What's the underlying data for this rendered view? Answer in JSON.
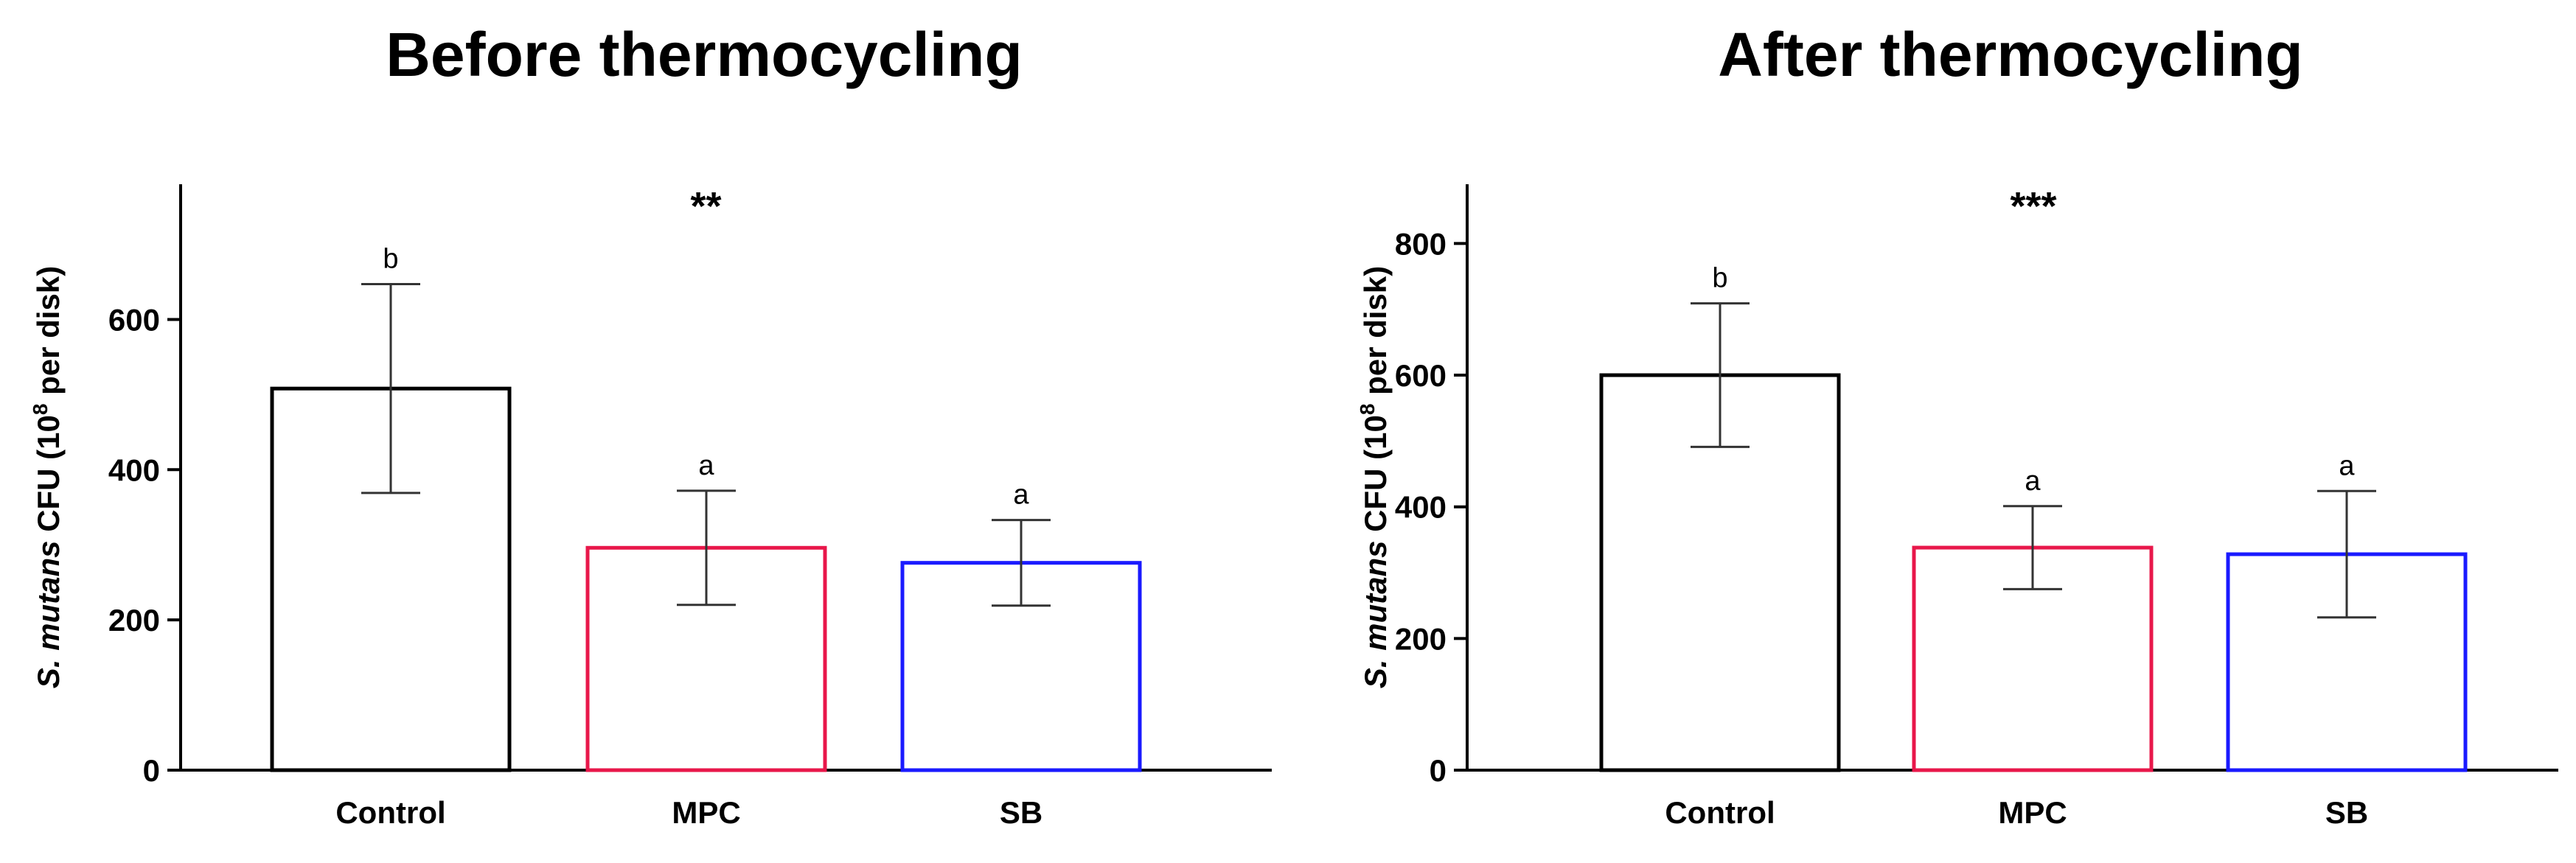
{
  "chart_data": [
    {
      "type": "bar",
      "title": "Before thermocycling",
      "ylabel_italic": "S. mutans",
      "ylabel_rest": " CFU (10",
      "ylabel_sup": "8",
      "ylabel_end": " per disk)",
      "categories": [
        "Control",
        "MPC",
        "SB"
      ],
      "values": [
        508,
        296,
        276
      ],
      "errors": [
        139,
        76,
        57
      ],
      "letters": [
        "b",
        "a",
        "a"
      ],
      "significance": "**",
      "colors": [
        "#000000",
        "#e8174a",
        "#1a1aff"
      ],
      "ylim": [
        0,
        780
      ],
      "yticks": [
        0,
        200,
        400,
        600
      ]
    },
    {
      "type": "bar",
      "title": "After thermocycling",
      "ylabel_italic": "S. mutans",
      "ylabel_rest": " CFU (10",
      "ylabel_sup": "8",
      "ylabel_end": " per disk)",
      "categories": [
        "Control",
        "MPC",
        "SB"
      ],
      "values": [
        600,
        338,
        328
      ],
      "errors": [
        109,
        63,
        96
      ],
      "letters": [
        "b",
        "a",
        "a"
      ],
      "significance": "***",
      "colors": [
        "#000000",
        "#e8174a",
        "#1a1aff"
      ],
      "ylim": [
        0,
        890
      ],
      "yticks": [
        0,
        200,
        400,
        600,
        800
      ]
    }
  ]
}
